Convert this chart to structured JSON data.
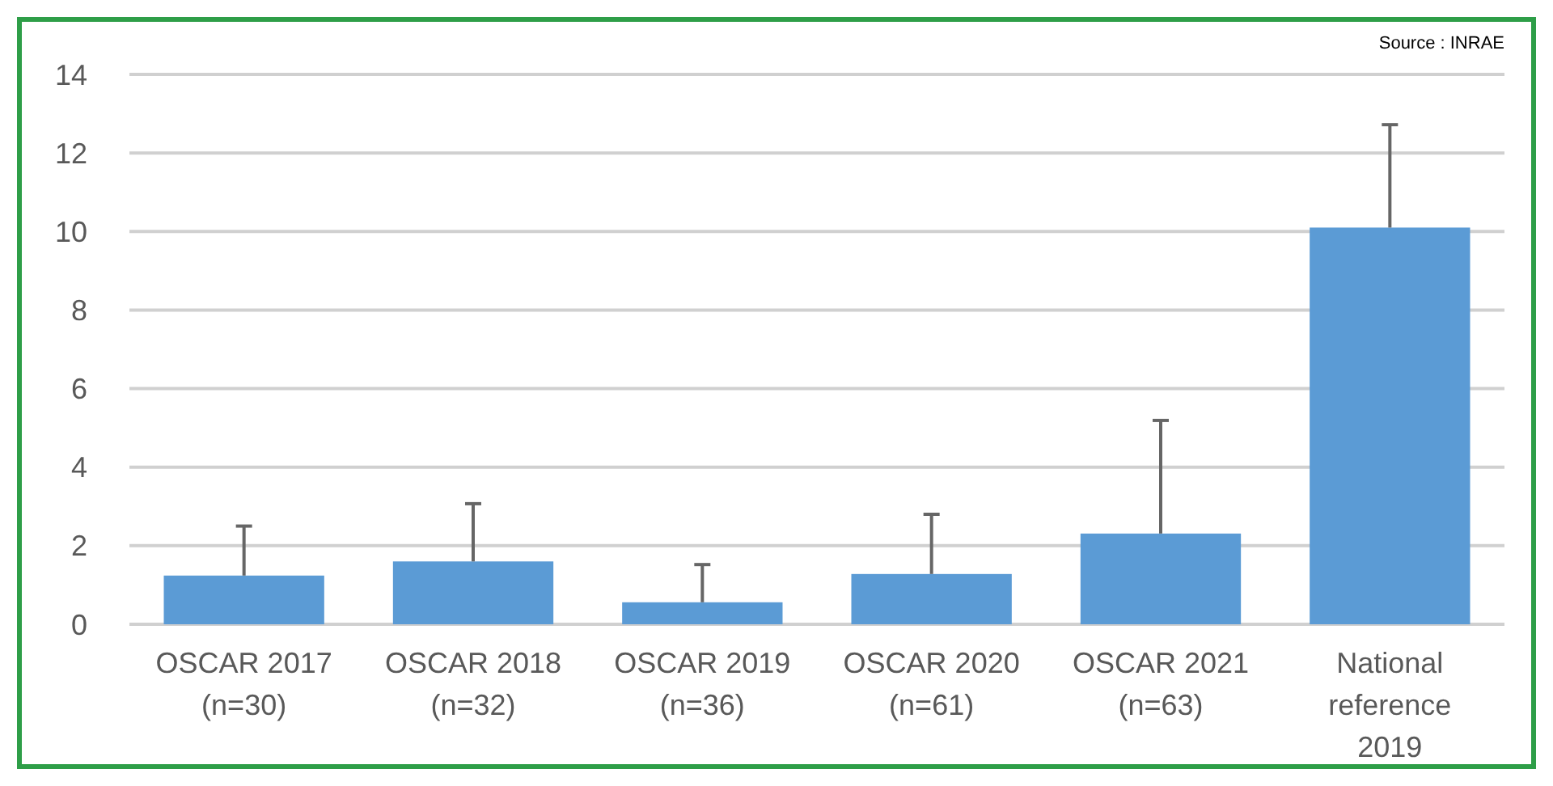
{
  "chart_data": {
    "type": "bar",
    "categories": [
      "OSCAR 2017\n(n=30)",
      "OSCAR 2018\n(n=32)",
      "OSCAR 2019\n(n=36)",
      "OSCAR 2020\n(n=61)",
      "OSCAR 2021\n(n=63)",
      "National\nreference\n2019"
    ],
    "values": [
      1.24,
      1.6,
      0.56,
      1.28,
      2.31,
      10.1
    ],
    "errors": [
      [
        1.24,
        2.5
      ],
      [
        1.6,
        3.07
      ],
      [
        0.56,
        1.52
      ],
      [
        1.28,
        2.8
      ],
      [
        2.31,
        5.19
      ],
      [
        10.1,
        12.72
      ]
    ],
    "color": "#5b9bd5",
    "ylim": [
      0,
      14
    ],
    "yticks": [
      0,
      2,
      4,
      6,
      8,
      10,
      12,
      14
    ],
    "grid": "y",
    "annotations": [
      "Source : INRAE"
    ]
  }
}
